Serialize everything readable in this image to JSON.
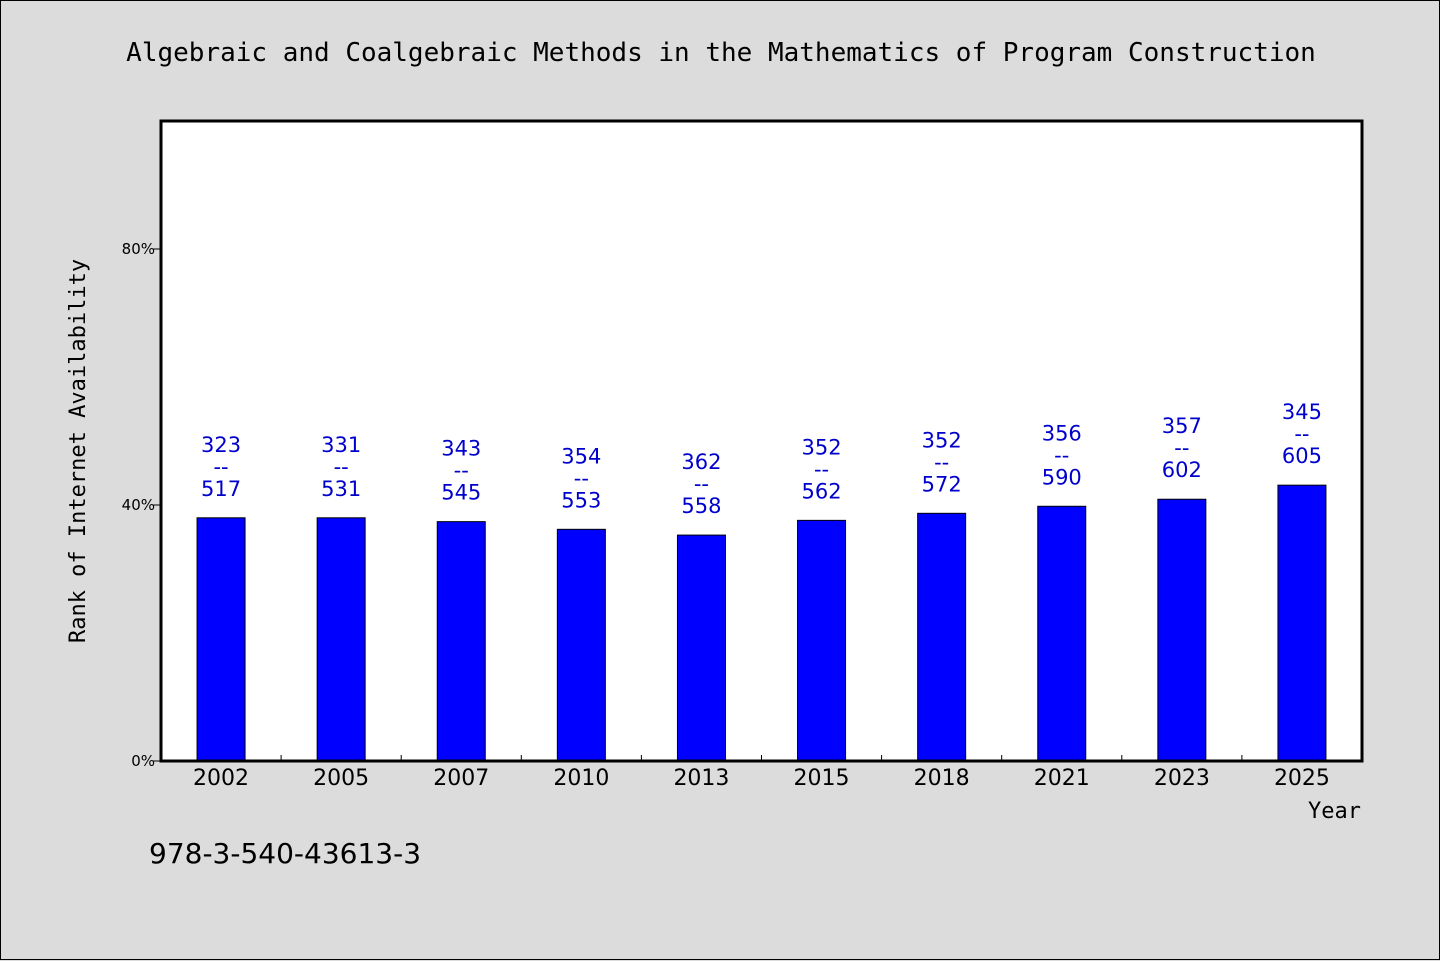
{
  "chart_data": {
    "type": "bar",
    "title": "Algebraic and Coalgebraic Methods in the Mathematics of Program Construction",
    "xlabel": "Year",
    "ylabel": "Rank of Internet Availability",
    "categories": [
      "2002",
      "2005",
      "2007",
      "2010",
      "2013",
      "2015",
      "2018",
      "2021",
      "2023",
      "2025"
    ],
    "values": [
      38.0,
      38.0,
      37.4,
      36.2,
      35.3,
      37.6,
      38.7,
      39.8,
      40.9,
      43.1
    ],
    "bar_labels_top": [
      "323",
      "331",
      "343",
      "354",
      "362",
      "352",
      "352",
      "356",
      "357",
      "345"
    ],
    "bar_labels_sep": "--",
    "bar_labels_bottom": [
      "517",
      "531",
      "545",
      "553",
      "558",
      "562",
      "572",
      "590",
      "602",
      "605"
    ],
    "yticks": [
      "0%",
      "40%",
      "80%"
    ],
    "ytick_values": [
      0,
      40,
      80
    ],
    "ylim": [
      0,
      100
    ],
    "grid": false,
    "bar_color": "#0000ff",
    "label_color": "#0000cc",
    "background_color": "#dcdcdc",
    "plot_background": "#ffffff"
  },
  "footer": {
    "isbn": "978-3-540-43613-3"
  }
}
